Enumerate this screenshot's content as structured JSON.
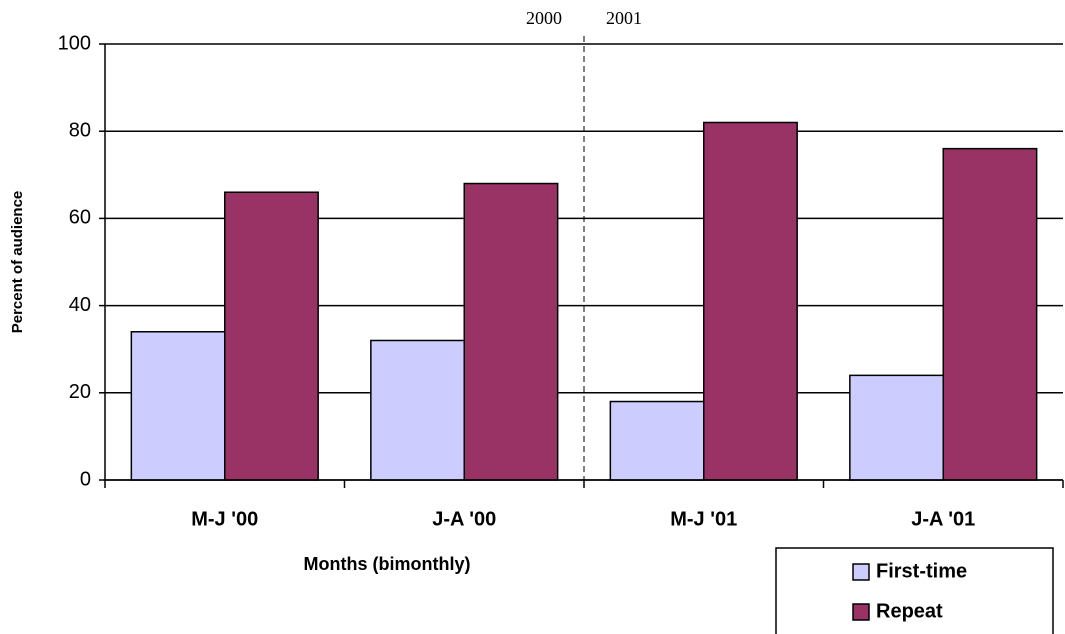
{
  "chart_data": {
    "type": "bar",
    "categories": [
      "M-J '00",
      "J-A '00",
      "M-J '01",
      "J-A '01"
    ],
    "series": [
      {
        "name": "First-time",
        "color": "#ccccff",
        "values": [
          34,
          32,
          18,
          24
        ]
      },
      {
        "name": "Repeat",
        "color": "#993366",
        "values": [
          66,
          68,
          82,
          76
        ]
      }
    ],
    "x_label": "Months (bimonthly)",
    "y_label": "Percent of audience",
    "annotations": [
      "2000",
      "2001"
    ],
    "ylim": [
      0,
      100
    ],
    "yticks": [
      0,
      20,
      40,
      60,
      80,
      100
    ],
    "grid": true,
    "legend": "bottom-right"
  }
}
